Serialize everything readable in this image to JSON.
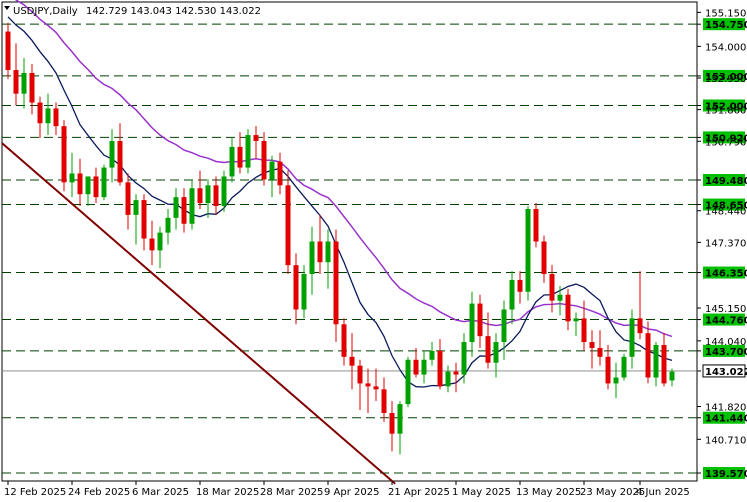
{
  "header": {
    "symbol": "USDJPY,Daily",
    "ohlc": "142.729 143.043 142.530 143.022"
  },
  "colors": {
    "bull": "#00a000",
    "bear": "#e00000",
    "ma_fast": "#0a1a5c",
    "ma_slow": "#9933cc",
    "trendline": "#800000",
    "level_line": "#004000",
    "tag_fill": "#00c000",
    "price_line": "#808080"
  },
  "chart_data": {
    "type": "candlestick",
    "y_range": [
      139.3,
      155.5
    ],
    "y_ticks": [
      "155.150",
      "154.750",
      "154.000",
      "153.000",
      "152.930",
      "152.000",
      "151.860",
      "150.920",
      "150.790",
      "149.480",
      "148.650",
      "148.440",
      "147.370",
      "146.350",
      "145.150",
      "144.760",
      "144.040",
      "143.700",
      "143.022",
      "141.820",
      "141.440",
      "140.710",
      "139.570"
    ],
    "y_tick_values": [
      155.15,
      154.75,
      154.0,
      153.0,
      152.93,
      152.0,
      151.86,
      150.92,
      150.79,
      149.48,
      148.65,
      148.44,
      147.37,
      146.35,
      145.15,
      144.76,
      144.04,
      143.7,
      143.022,
      141.82,
      141.44,
      140.71,
      139.57
    ],
    "levels": [
      154.75,
      153.0,
      152.0,
      150.92,
      149.48,
      148.65,
      146.35,
      144.76,
      143.7,
      141.44,
      139.57
    ],
    "level_labels": [
      "154.750",
      "153.000",
      "152.000",
      "150.920",
      "149.480",
      "148.650",
      "146.350",
      "144.760",
      "143.700",
      "141.440",
      "139.570"
    ],
    "current_price": 143.022,
    "current_price_label": "143.022",
    "x_labels": [
      "12 Feb 2025",
      "24 Feb 2025",
      "6 Mar 2025",
      "18 Mar 2025",
      "28 Mar 2025",
      "9 Apr 2025",
      "21 Apr 2025",
      "1 May 2025",
      "13 May 2025",
      "23 May 2025",
      "4 Jun 2025"
    ],
    "x_label_index": [
      0,
      8,
      16,
      24,
      32,
      40,
      48,
      56,
      64,
      72,
      79
    ],
    "candles": [
      [
        154.5,
        154.8,
        152.9,
        153.2
      ],
      [
        153.2,
        154.1,
        152.0,
        152.4
      ],
      [
        152.4,
        153.6,
        151.9,
        153.1
      ],
      [
        153.1,
        153.4,
        151.7,
        152.1
      ],
      [
        152.1,
        152.3,
        150.9,
        151.4
      ],
      [
        151.4,
        152.4,
        151.0,
        151.9
      ],
      [
        151.9,
        152.1,
        151.0,
        151.3
      ],
      [
        151.3,
        151.5,
        149.1,
        149.4
      ],
      [
        149.4,
        150.4,
        148.9,
        149.7
      ],
      [
        149.7,
        150.2,
        148.6,
        149.0
      ],
      [
        149.0,
        149.6,
        148.6,
        149.6
      ],
      [
        149.6,
        149.9,
        148.7,
        148.9
      ],
      [
        148.9,
        150.0,
        148.8,
        149.9
      ],
      [
        149.9,
        151.2,
        149.4,
        150.8
      ],
      [
        150.8,
        151.4,
        149.3,
        149.4
      ],
      [
        149.4,
        149.7,
        147.8,
        148.3
      ],
      [
        148.3,
        149.0,
        147.3,
        148.8
      ],
      [
        148.8,
        149.0,
        147.1,
        147.5
      ],
      [
        147.5,
        148.1,
        146.6,
        147.1
      ],
      [
        147.1,
        147.9,
        146.5,
        147.7
      ],
      [
        147.7,
        148.5,
        147.3,
        148.2
      ],
      [
        148.2,
        149.2,
        147.8,
        148.9
      ],
      [
        148.9,
        149.2,
        147.7,
        148.0
      ],
      [
        148.0,
        149.5,
        147.8,
        149.2
      ],
      [
        149.2,
        149.8,
        148.5,
        148.7
      ],
      [
        148.7,
        149.5,
        148.2,
        149.3
      ],
      [
        149.3,
        149.6,
        148.3,
        148.6
      ],
      [
        148.6,
        149.8,
        148.4,
        149.6
      ],
      [
        149.6,
        150.9,
        149.4,
        150.6
      ],
      [
        150.6,
        151.1,
        149.7,
        149.9
      ],
      [
        149.9,
        151.2,
        149.7,
        151.0
      ],
      [
        151.0,
        151.3,
        150.2,
        150.8
      ],
      [
        150.8,
        151.1,
        149.3,
        149.5
      ],
      [
        149.5,
        150.3,
        148.9,
        150.1
      ],
      [
        150.1,
        150.4,
        149.0,
        149.3
      ],
      [
        149.3,
        149.8,
        146.3,
        146.6
      ],
      [
        146.6,
        147.0,
        144.6,
        145.1
      ],
      [
        145.1,
        146.6,
        144.8,
        146.3
      ],
      [
        146.3,
        147.9,
        145.6,
        147.4
      ],
      [
        147.4,
        148.3,
        146.3,
        146.7
      ],
      [
        146.7,
        147.8,
        145.8,
        147.4
      ],
      [
        147.4,
        147.8,
        144.0,
        144.6
      ],
      [
        144.6,
        144.8,
        143.2,
        143.5
      ],
      [
        143.5,
        144.3,
        142.4,
        143.2
      ],
      [
        143.2,
        143.4,
        141.7,
        142.6
      ],
      [
        142.6,
        143.1,
        141.6,
        142.5
      ],
      [
        142.5,
        143.1,
        142.0,
        142.4
      ],
      [
        142.4,
        142.8,
        141.3,
        141.6
      ],
      [
        141.6,
        142.0,
        140.3,
        140.9
      ],
      [
        140.9,
        142.0,
        140.2,
        141.9
      ],
      [
        141.9,
        143.5,
        141.8,
        143.4
      ],
      [
        143.4,
        143.8,
        142.8,
        142.9
      ],
      [
        142.9,
        143.7,
        142.6,
        143.4
      ],
      [
        143.4,
        144.0,
        143.2,
        143.7
      ],
      [
        143.7,
        144.1,
        142.4,
        142.5
      ],
      [
        142.5,
        143.2,
        142.3,
        143.0
      ],
      [
        143.0,
        143.3,
        142.3,
        142.9
      ],
      [
        142.9,
        144.3,
        142.6,
        144.0
      ],
      [
        144.0,
        145.7,
        143.5,
        145.3
      ],
      [
        145.3,
        145.6,
        143.8,
        144.2
      ],
      [
        144.2,
        145.0,
        143.1,
        143.3
      ],
      [
        143.3,
        144.3,
        142.8,
        144.0
      ],
      [
        144.0,
        145.4,
        143.4,
        145.1
      ],
      [
        145.1,
        146.4,
        144.6,
        146.1
      ],
      [
        146.1,
        146.4,
        145.3,
        145.7
      ],
      [
        145.7,
        148.6,
        145.4,
        148.5
      ],
      [
        148.5,
        148.7,
        147.2,
        147.4
      ],
      [
        147.4,
        147.6,
        146.0,
        146.3
      ],
      [
        146.3,
        146.6,
        145.0,
        145.4
      ],
      [
        145.4,
        145.9,
        144.9,
        145.6
      ],
      [
        145.6,
        145.8,
        144.4,
        144.7
      ],
      [
        144.7,
        145.0,
        144.2,
        144.8
      ],
      [
        144.8,
        145.4,
        143.7,
        144.0
      ],
      [
        144.0,
        144.4,
        143.1,
        143.8
      ],
      [
        143.8,
        144.4,
        143.2,
        143.5
      ],
      [
        143.5,
        143.9,
        142.4,
        142.6
      ],
      [
        142.6,
        143.3,
        142.1,
        142.8
      ],
      [
        142.8,
        143.6,
        142.7,
        143.5
      ],
      [
        143.5,
        145.1,
        143.1,
        144.8
      ],
      [
        144.8,
        146.4,
        144.1,
        144.3
      ],
      [
        144.3,
        144.7,
        142.6,
        142.8
      ],
      [
        142.8,
        144.0,
        142.5,
        143.9
      ],
      [
        143.9,
        144.3,
        142.5,
        142.6
      ],
      [
        142.7,
        143.1,
        142.5,
        143.0
      ]
    ]
  }
}
